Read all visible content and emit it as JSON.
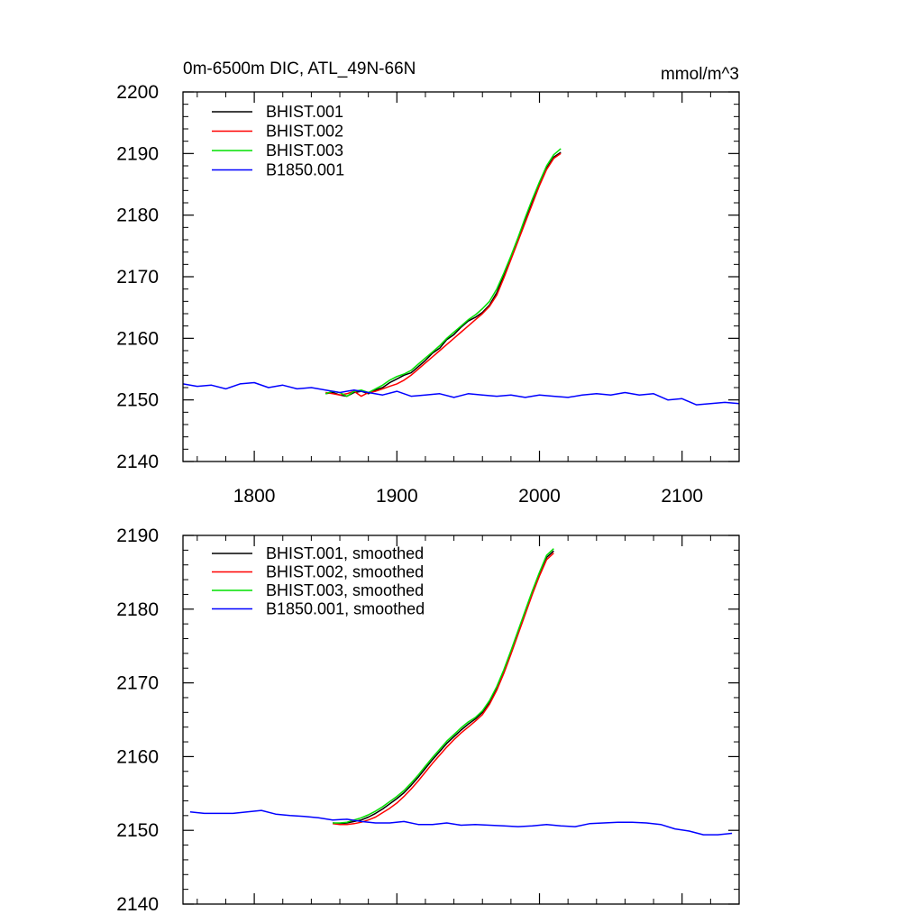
{
  "figure": {
    "title_left": "0m-6500m DIC, ATL_49N-66N",
    "title_right": "mmol/m^3"
  },
  "chart_data": [
    {
      "type": "line",
      "xlim": [
        1750,
        2140
      ],
      "ylim": [
        2140,
        2200
      ],
      "xticks": [
        1800,
        1900,
        2000,
        2100
      ],
      "yticks": [
        2140,
        2150,
        2160,
        2170,
        2180,
        2190,
        2200
      ],
      "xtick_labels_shown": true,
      "grid": false,
      "legend_position": "top-left",
      "series": [
        {
          "name": "BHIST.001",
          "color": "#000000",
          "x": [
            1850,
            1855,
            1860,
            1865,
            1870,
            1875,
            1880,
            1885,
            1890,
            1895,
            1900,
            1905,
            1910,
            1915,
            1920,
            1925,
            1930,
            1935,
            1940,
            1945,
            1950,
            1955,
            1960,
            1965,
            1970,
            1975,
            1980,
            1985,
            1990,
            1995,
            2000,
            2005,
            2010,
            2015
          ],
          "y": [
            2151.0,
            2151.2,
            2150.8,
            2150.6,
            2151.2,
            2151.4,
            2151.0,
            2151.6,
            2152.0,
            2152.8,
            2153.4,
            2154.0,
            2154.4,
            2155.4,
            2156.4,
            2157.6,
            2158.4,
            2159.8,
            2160.6,
            2161.8,
            2162.8,
            2163.4,
            2164.2,
            2165.4,
            2167.4,
            2170.2,
            2173.0,
            2176.0,
            2179.2,
            2182.2,
            2185.0,
            2187.6,
            2189.4,
            2190.2
          ]
        },
        {
          "name": "BHIST.002",
          "color": "#ff0000",
          "x": [
            1850,
            1855,
            1860,
            1865,
            1870,
            1875,
            1880,
            1885,
            1890,
            1895,
            1900,
            1905,
            1910,
            1915,
            1920,
            1925,
            1930,
            1935,
            1940,
            1945,
            1950,
            1955,
            1960,
            1965,
            1970,
            1975,
            1980,
            1985,
            1990,
            1995,
            2000,
            2005,
            2010,
            2015
          ],
          "y": [
            2151.2,
            2151.0,
            2150.8,
            2151.0,
            2151.4,
            2150.6,
            2151.2,
            2151.4,
            2151.8,
            2152.2,
            2152.6,
            2153.2,
            2154.0,
            2155.0,
            2156.0,
            2157.0,
            2158.0,
            2159.0,
            2160.0,
            2161.0,
            2162.0,
            2163.0,
            2164.0,
            2165.2,
            2167.0,
            2169.8,
            2172.8,
            2175.8,
            2178.8,
            2181.8,
            2184.8,
            2187.4,
            2189.2,
            2190.0
          ]
        },
        {
          "name": "BHIST.003",
          "color": "#00e000",
          "x": [
            1850,
            1855,
            1860,
            1865,
            1870,
            1875,
            1880,
            1885,
            1890,
            1895,
            1900,
            1905,
            1910,
            1915,
            1920,
            1925,
            1930,
            1935,
            1940,
            1945,
            1950,
            1955,
            1960,
            1965,
            1970,
            1975,
            1980,
            1985,
            1990,
            1995,
            2000,
            2005,
            2010,
            2015
          ],
          "y": [
            2151.0,
            2151.4,
            2151.2,
            2150.6,
            2151.4,
            2151.6,
            2151.2,
            2151.8,
            2152.4,
            2153.2,
            2153.8,
            2154.2,
            2154.8,
            2155.8,
            2156.8,
            2157.8,
            2158.8,
            2160.0,
            2161.0,
            2162.0,
            2163.0,
            2163.8,
            2164.8,
            2166.0,
            2168.0,
            2170.6,
            2173.4,
            2176.4,
            2179.6,
            2182.6,
            2185.4,
            2188.0,
            2189.8,
            2190.8
          ]
        },
        {
          "name": "B1850.001",
          "color": "#0000ff",
          "x": [
            1750,
            1760,
            1770,
            1780,
            1790,
            1800,
            1810,
            1820,
            1830,
            1840,
            1850,
            1860,
            1870,
            1880,
            1890,
            1900,
            1910,
            1920,
            1930,
            1940,
            1950,
            1960,
            1970,
            1980,
            1990,
            2000,
            2010,
            2020,
            2030,
            2040,
            2050,
            2060,
            2070,
            2080,
            2090,
            2100,
            2110,
            2120,
            2130,
            2140
          ],
          "y": [
            2152.6,
            2152.2,
            2152.4,
            2151.8,
            2152.6,
            2152.8,
            2152.0,
            2152.4,
            2151.8,
            2152.0,
            2151.6,
            2151.2,
            2151.6,
            2151.2,
            2150.8,
            2151.4,
            2150.6,
            2150.8,
            2151.0,
            2150.4,
            2151.0,
            2150.8,
            2150.6,
            2150.8,
            2150.4,
            2150.8,
            2150.6,
            2150.4,
            2150.8,
            2151.0,
            2150.8,
            2151.2,
            2150.8,
            2151.0,
            2150.0,
            2150.2,
            2149.2,
            2149.4,
            2149.6,
            2149.4
          ]
        }
      ]
    },
    {
      "type": "line",
      "xlim": [
        1750,
        2140
      ],
      "ylim": [
        2140,
        2190
      ],
      "xticks": [
        1800,
        1900,
        2000,
        2100
      ],
      "yticks": [
        2140,
        2150,
        2160,
        2170,
        2180,
        2190
      ],
      "xtick_labels_shown": false,
      "grid": false,
      "legend_position": "top-left",
      "series": [
        {
          "name": "BHIST.001, smoothed",
          "color": "#000000",
          "x": [
            1855,
            1860,
            1865,
            1870,
            1875,
            1880,
            1885,
            1890,
            1895,
            1900,
            1905,
            1910,
            1915,
            1920,
            1925,
            1930,
            1935,
            1940,
            1945,
            1950,
            1955,
            1960,
            1965,
            1970,
            1975,
            1980,
            1985,
            1990,
            1995,
            2000,
            2005,
            2010
          ],
          "y": [
            2151.0,
            2150.9,
            2151.0,
            2151.2,
            2151.4,
            2151.8,
            2152.3,
            2152.9,
            2153.6,
            2154.3,
            2155.1,
            2156.1,
            2157.2,
            2158.4,
            2159.6,
            2160.7,
            2161.8,
            2162.7,
            2163.6,
            2164.4,
            2165.1,
            2166.0,
            2167.4,
            2169.3,
            2171.6,
            2174.2,
            2176.9,
            2179.6,
            2182.3,
            2184.8,
            2187.0,
            2187.9
          ]
        },
        {
          "name": "BHIST.002, smoothed",
          "color": "#ff0000",
          "x": [
            1855,
            1860,
            1865,
            1870,
            1875,
            1880,
            1885,
            1890,
            1895,
            1900,
            1905,
            1910,
            1915,
            1920,
            1925,
            1930,
            1935,
            1940,
            1945,
            1950,
            1955,
            1960,
            1965,
            1970,
            1975,
            1980,
            1985,
            1990,
            1995,
            2000,
            2005,
            2010
          ],
          "y": [
            2150.9,
            2150.8,
            2150.8,
            2150.9,
            2151.1,
            2151.4,
            2151.8,
            2152.4,
            2153.0,
            2153.7,
            2154.6,
            2155.6,
            2156.7,
            2157.9,
            2159.1,
            2160.2,
            2161.3,
            2162.3,
            2163.2,
            2164.0,
            2164.8,
            2165.7,
            2167.1,
            2169.0,
            2171.3,
            2173.9,
            2176.6,
            2179.3,
            2182.0,
            2184.5,
            2186.7,
            2187.6
          ]
        },
        {
          "name": "BHIST.003, smoothed",
          "color": "#00e000",
          "x": [
            1855,
            1860,
            1865,
            1870,
            1875,
            1880,
            1885,
            1890,
            1895,
            1900,
            1905,
            1910,
            1915,
            1920,
            1925,
            1930,
            1935,
            1940,
            1945,
            1950,
            1955,
            1960,
            1965,
            1970,
            1975,
            1980,
            1985,
            1990,
            1995,
            2000,
            2005,
            2010
          ],
          "y": [
            2151.0,
            2151.0,
            2151.1,
            2151.4,
            2151.7,
            2152.1,
            2152.6,
            2153.2,
            2153.9,
            2154.6,
            2155.4,
            2156.4,
            2157.5,
            2158.7,
            2159.9,
            2161.0,
            2162.1,
            2163.0,
            2163.9,
            2164.7,
            2165.3,
            2166.2,
            2167.6,
            2169.5,
            2171.8,
            2174.4,
            2177.1,
            2179.8,
            2182.5,
            2185.0,
            2187.3,
            2188.2
          ]
        },
        {
          "name": "B1850.001, smoothed",
          "color": "#0000ff",
          "x": [
            1755,
            1765,
            1775,
            1785,
            1795,
            1805,
            1815,
            1825,
            1835,
            1845,
            1855,
            1865,
            1875,
            1885,
            1895,
            1905,
            1915,
            1925,
            1935,
            1945,
            1955,
            1965,
            1975,
            1985,
            1995,
            2005,
            2015,
            2025,
            2035,
            2045,
            2055,
            2065,
            2075,
            2085,
            2095,
            2105,
            2115,
            2125,
            2135
          ],
          "y": [
            2152.5,
            2152.3,
            2152.3,
            2152.3,
            2152.5,
            2152.7,
            2152.2,
            2152.0,
            2151.9,
            2151.7,
            2151.4,
            2151.5,
            2151.2,
            2151.0,
            2151.0,
            2151.2,
            2150.8,
            2150.8,
            2151.0,
            2150.7,
            2150.8,
            2150.7,
            2150.6,
            2150.5,
            2150.6,
            2150.8,
            2150.6,
            2150.5,
            2150.9,
            2151.0,
            2151.1,
            2151.1,
            2151.0,
            2150.8,
            2150.2,
            2149.9,
            2149.4,
            2149.4,
            2149.6
          ]
        }
      ]
    }
  ]
}
